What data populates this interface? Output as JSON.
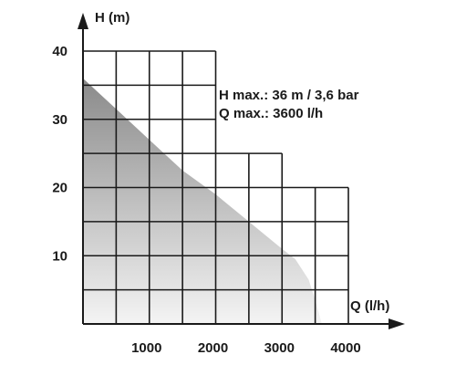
{
  "chart_data": {
    "type": "area",
    "title": "",
    "xlabel": "Q (l/h)",
    "ylabel": "H (m)",
    "xlim": [
      0,
      4000
    ],
    "ylim": [
      0,
      40
    ],
    "xticks": [
      1000,
      2000,
      3000,
      4000
    ],
    "yticks": [
      10,
      20,
      30,
      40
    ],
    "grid": true,
    "series": [
      {
        "x": [
          0,
          500,
          1000,
          1500,
          2000,
          2500,
          3000,
          3200,
          3400,
          3500,
          3600
        ],
        "y": [
          36,
          31.5,
          27,
          22.5,
          19,
          15,
          11,
          9.5,
          6.5,
          3.5,
          0
        ]
      }
    ],
    "annotations": [
      "H max.: 36 m / 3,6 bar",
      "Q max.: 3600 l/h"
    ]
  },
  "colors": {
    "fill_top": "#8a8a8a",
    "fill_bottom": "#f4f4f4",
    "axis": "#1a1a1a",
    "grid": "#1a1a1a"
  }
}
